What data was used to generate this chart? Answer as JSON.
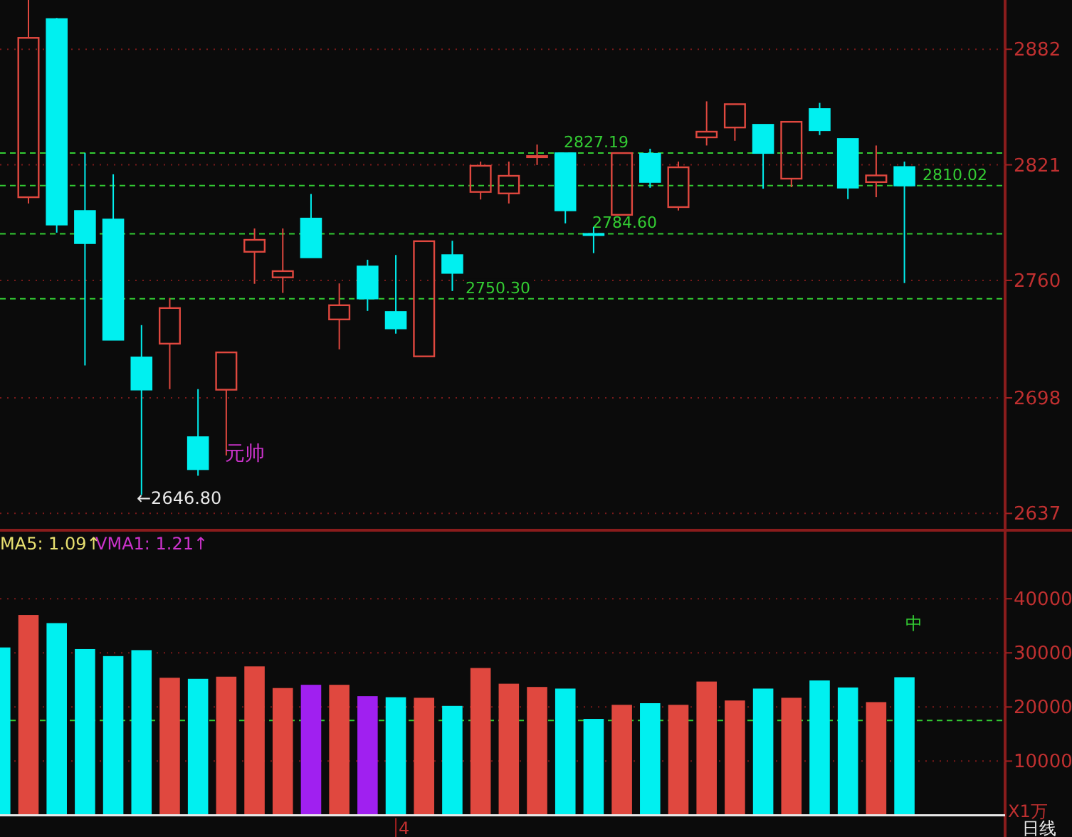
{
  "chart_data": [
    {
      "type": "candlestick",
      "categories": [
        null,
        null,
        null,
        null,
        null,
        null,
        null,
        null,
        null,
        null,
        null,
        null,
        null,
        null,
        null,
        null,
        null,
        null,
        null,
        null,
        null,
        null,
        null,
        null,
        null,
        null,
        null,
        null,
        null,
        null,
        null,
        null
      ],
      "ohlc": [
        [
          2803.9,
          2908,
          2800.6,
          2888.0
        ],
        [
          2898.0,
          2898.5,
          2785.2,
          2789.4
        ],
        [
          2796.7,
          2827.2,
          2715.1,
          2779.6
        ],
        [
          2792.2,
          2816.0,
          2728.6,
          2728.6
        ],
        [
          2719.4,
          2736.4,
          2646.8,
          2702.3
        ],
        [
          2726.6,
          2750.7,
          2702.6,
          2745.4
        ],
        [
          2677.3,
          2702.6,
          2656.9,
          2660.3
        ],
        [
          2702.3,
          2722.0,
          2667.6,
          2722.0
        ],
        [
          2775.1,
          2787.4,
          2758.2,
          2781.4
        ],
        [
          2761.6,
          2787.4,
          2753.4,
          2764.9
        ],
        [
          2792.7,
          2805.6,
          2772.1,
          2772.1
        ],
        [
          2739.4,
          2758.4,
          2723.6,
          2746.9
        ],
        [
          2767.4,
          2770.9,
          2743.9,
          2750.4
        ],
        [
          2743.4,
          2773.4,
          2731.9,
          2734.6
        ],
        [
          2719.9,
          2780.7,
          2719.9,
          2780.7
        ],
        [
          2773.4,
          2780.9,
          2754.4,
          2763.9
        ],
        [
          2806.7,
          2822.7,
          2802.7,
          2820.5
        ],
        [
          2805.9,
          2822.7,
          2800.6,
          2815.2
        ],
        [
          2825.7,
          2831.7,
          2820.9,
          2825.7
        ],
        [
          2827.19,
          2827.19,
          2790.1,
          2796.9
        ],
        [
          2784.6,
          2788.2,
          2774.4,
          2784.6
        ],
        [
          2794.6,
          2827.2,
          2794.6,
          2827.2
        ],
        [
          2826.9,
          2829.5,
          2808.9,
          2811.9
        ],
        [
          2798.7,
          2822.7,
          2796.9,
          2819.7
        ],
        [
          2835.5,
          2854.5,
          2831.2,
          2838.5
        ],
        [
          2840.7,
          2853.0,
          2833.7,
          2853.0
        ],
        [
          2842.2,
          2842.2,
          2808.4,
          2827.2
        ],
        [
          2813.7,
          2843.7,
          2809.2,
          2843.7
        ],
        [
          2850.5,
          2853.7,
          2836.7,
          2839.2
        ],
        [
          2834.7,
          2834.7,
          2802.9,
          2808.9
        ],
        [
          2811.9,
          2831.2,
          2803.9,
          2815.4
        ],
        [
          2819.9,
          2822.7,
          2758.6,
          2810.02
        ]
      ],
      "colors": [
        "#e0483f",
        "#00f0f0",
        "#00f0f0",
        "#00f0f0",
        "#00f0f0",
        "#e0483f",
        "#00f0f0",
        "#e0483f",
        "#e0483f",
        "#e0483f",
        "#00f0f0",
        "#e0483f",
        "#00f0f0",
        "#00f0f0",
        "#e0483f",
        "#00f0f0",
        "#e0483f",
        "#e0483f",
        "#e0483f",
        "#00f0f0",
        "#00f0f0",
        "#e0483f",
        "#00f0f0",
        "#e0483f",
        "#e0483f",
        "#e0483f",
        "#00f0f0",
        "#e0483f",
        "#00f0f0",
        "#00f0f0",
        "#e0483f",
        "#00f0f0"
      ],
      "ylim": [
        2630,
        2908
      ],
      "yticks": [
        2882,
        2821,
        2760,
        2698,
        2637
      ],
      "grid": "y",
      "tick_labels": "y",
      "ref_lines": [
        {
          "axis": "y",
          "value": 2827.19,
          "label": "2827.19",
          "color": "#33cc33",
          "line_style": "dashed"
        },
        {
          "axis": "y",
          "value": 2784.6,
          "label": "2784.60",
          "color": "#33cc33",
          "line_style": "dashed"
        },
        {
          "axis": "y",
          "value": 2750.3,
          "label": "2750.30",
          "color": "#33cc33",
          "line_style": "dashed"
        },
        {
          "axis": "y",
          "value": 2810.02,
          "label": "2810.02",
          "color": "#33cc33",
          "line_style": "dashed"
        }
      ],
      "annotations": [
        "元帅",
        "←2646.80"
      ]
    },
    {
      "type": "bar",
      "categories": [
        null,
        null,
        null,
        null,
        null,
        null,
        null,
        null,
        null,
        null,
        null,
        null,
        null,
        null,
        "4",
        null,
        null,
        null,
        null,
        null,
        null,
        null,
        null,
        null,
        null,
        null,
        null,
        null,
        null,
        null,
        null,
        null,
        null
      ],
      "values": [
        31000,
        37000,
        35500,
        30700,
        29400,
        30500,
        25400,
        25200,
        25600,
        27500,
        23500,
        24100,
        24100,
        22000,
        21800,
        21700,
        20200,
        27200,
        24300,
        23700,
        23400,
        17800,
        20400,
        20700,
        20400,
        24700,
        21200,
        23400,
        21700,
        24900,
        23600,
        20900,
        25500
      ],
      "colors": [
        "#00f0f0",
        "#e0483f",
        "#00f0f0",
        "#00f0f0",
        "#00f0f0",
        "#00f0f0",
        "#e0483f",
        "#00f0f0",
        "#e0483f",
        "#e0483f",
        "#e0483f",
        "#a020f0",
        "#e0483f",
        "#a020f0",
        "#00f0f0",
        "#e0483f",
        "#00f0f0",
        "#e0483f",
        "#e0483f",
        "#e0483f",
        "#00f0f0",
        "#00f0f0",
        "#e0483f",
        "#00f0f0",
        "#e0483f",
        "#e0483f",
        "#e0483f",
        "#00f0f0",
        "#e0483f",
        "#00f0f0",
        "#00f0f0",
        "#e0483f",
        "#00f0f0"
      ],
      "ylim": [
        0,
        52000
      ],
      "yticks": [
        10000,
        20000,
        30000,
        40000
      ],
      "grid": "y",
      "ref_lines": [
        {
          "axis": "y",
          "value": 17500,
          "color": "#33cc33",
          "line_style": "dashed"
        }
      ],
      "annotations": [
        "MA5: 1.09↑",
        "VMA1: 1.21↑",
        "中",
        "X1万",
        "日线"
      ]
    }
  ]
}
